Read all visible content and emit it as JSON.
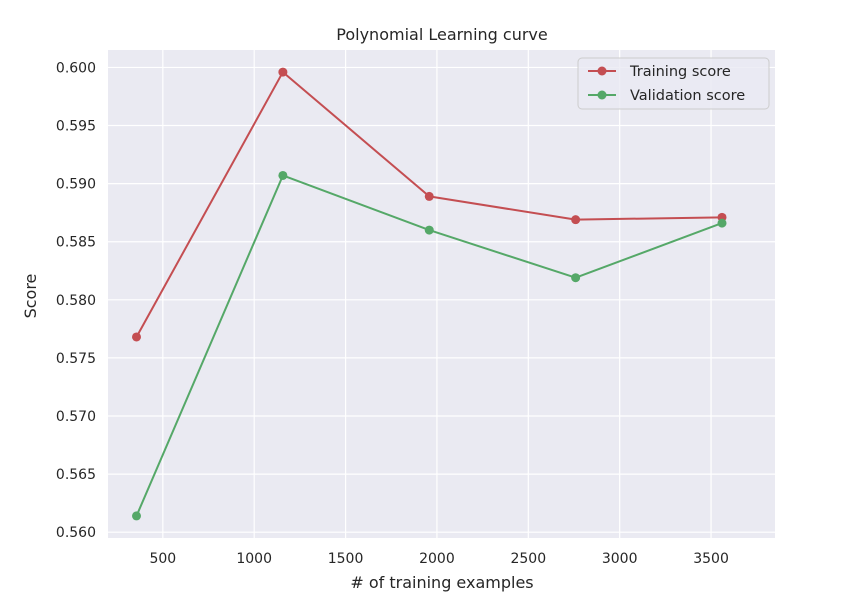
{
  "chart_data": {
    "type": "line",
    "title": "Polynomial Learning curve",
    "xlabel": "# of training examples",
    "ylabel": "Score",
    "xlim": [
      200,
      3850
    ],
    "ylim": [
      0.5595,
      0.6015
    ],
    "x_ticks": [
      500,
      1000,
      1500,
      2000,
      2500,
      3000,
      3500
    ],
    "y_ticks": [
      0.56,
      0.565,
      0.57,
      0.575,
      0.58,
      0.585,
      0.59,
      0.595,
      0.6
    ],
    "x_tick_labels": [
      "500",
      "1000",
      "1500",
      "2000",
      "2500",
      "3000",
      "3500"
    ],
    "y_tick_labels": [
      "0.560",
      "0.565",
      "0.570",
      "0.575",
      "0.580",
      "0.585",
      "0.590",
      "0.595",
      "0.600"
    ],
    "x": [
      356,
      1157,
      1958,
      2759,
      3560
    ],
    "series": [
      {
        "name": "Training score",
        "color": "#c44e52",
        "values": [
          0.5768,
          0.5996,
          0.5889,
          0.5869,
          0.5871
        ]
      },
      {
        "name": "Validation score",
        "color": "#55a868",
        "values": [
          0.5614,
          0.5907,
          0.586,
          0.5819,
          0.5866
        ]
      }
    ],
    "grid": true,
    "background": "#eaeaf2",
    "legend_position": "top-right"
  }
}
